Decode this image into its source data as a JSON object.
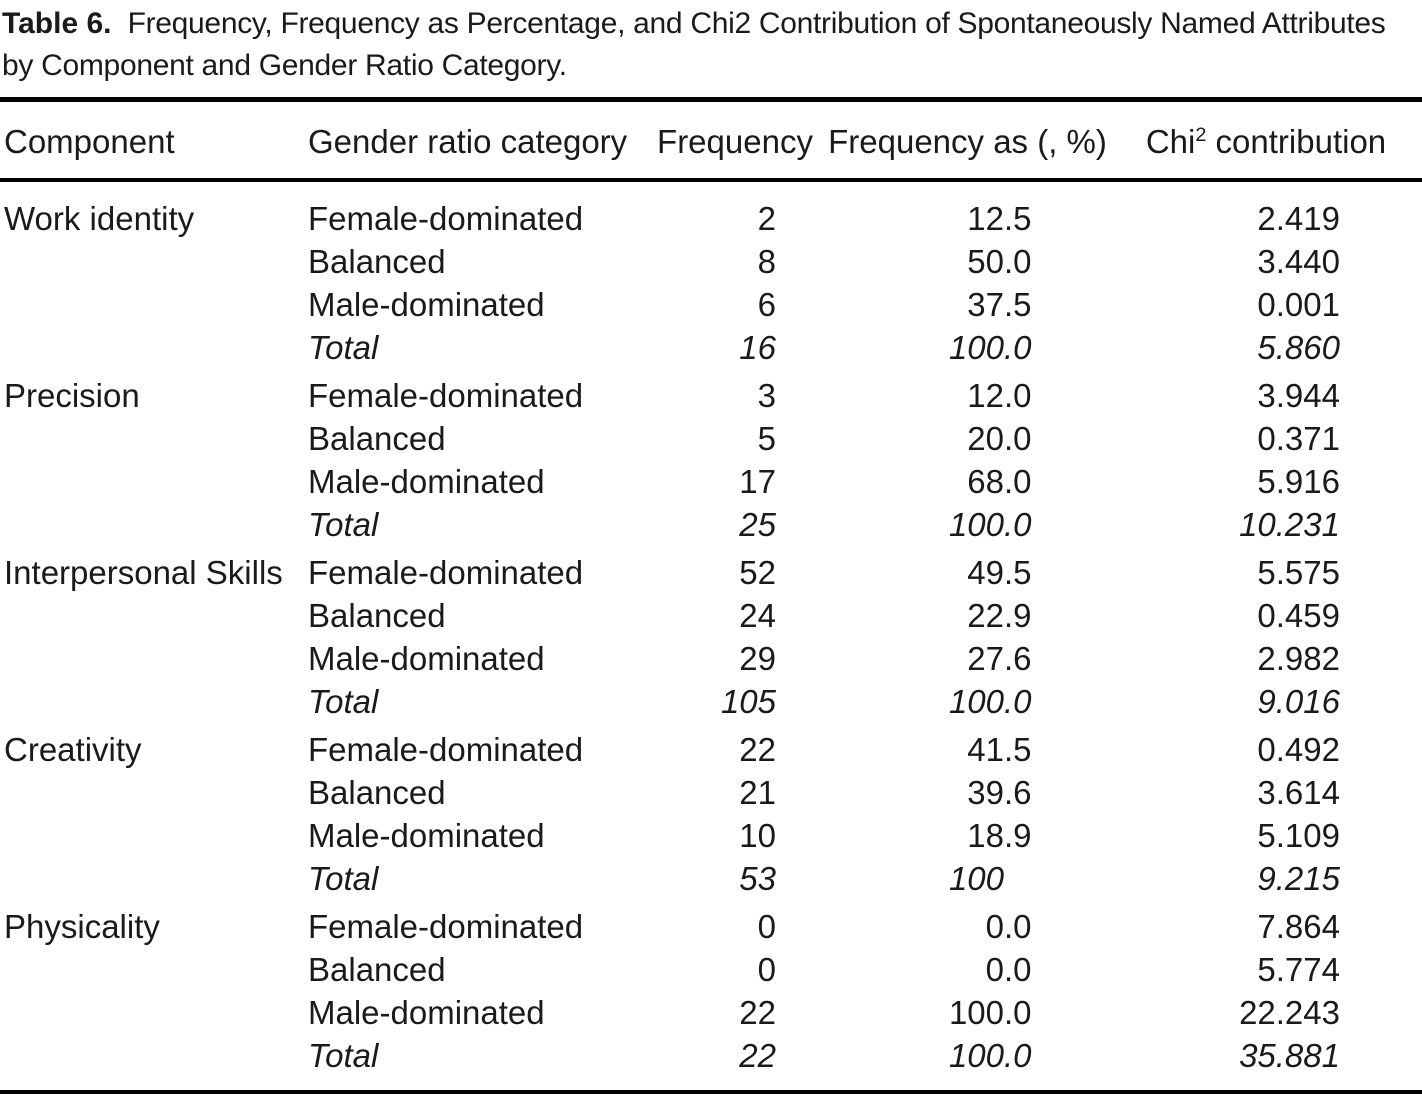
{
  "caption": {
    "label": "Table 6.",
    "text": "Frequency, Frequency as Percentage, and Chi2 Contribution of Spontaneously Named Attributes by Component and Gender Ratio Category."
  },
  "colors": {
    "text": "#1a1a1a",
    "rule": "#000000",
    "background": "#ffffff"
  },
  "table": {
    "headers": {
      "component": "Component",
      "gender_ratio_category": "Gender ratio category",
      "frequency": "Frequency",
      "frequency_pct": "Frequency as (, %)",
      "chi2": {
        "pre": "Chi",
        "sup": "2",
        "post": " contribution"
      }
    },
    "groups": [
      {
        "component": "Work identity",
        "rows": [
          {
            "category": "Female-dominated",
            "frequency": "2",
            "percent": "12.5",
            "chi2": "2.419"
          },
          {
            "category": "Balanced",
            "frequency": "8",
            "percent": "50.0",
            "chi2": "3.440"
          },
          {
            "category": "Male-dominated",
            "frequency": "6",
            "percent": "37.5",
            "chi2": "0.001"
          },
          {
            "category": "Total",
            "frequency": "16",
            "percent": "100.0",
            "chi2": "5.860",
            "total": true
          }
        ]
      },
      {
        "component": "Precision",
        "rows": [
          {
            "category": "Female-dominated",
            "frequency": "3",
            "percent": "12.0",
            "chi2": "3.944"
          },
          {
            "category": "Balanced",
            "frequency": "5",
            "percent": "20.0",
            "chi2": "0.371"
          },
          {
            "category": "Male-dominated",
            "frequency": "17",
            "percent": "68.0",
            "chi2": "5.916"
          },
          {
            "category": "Total",
            "frequency": "25",
            "percent": "100.0",
            "chi2": "10.231",
            "total": true
          }
        ]
      },
      {
        "component": "Interpersonal Skills",
        "rows": [
          {
            "category": "Female-dominated",
            "frequency": "52",
            "percent": "49.5",
            "chi2": "5.575"
          },
          {
            "category": "Balanced",
            "frequency": "24",
            "percent": "22.9",
            "chi2": "0.459"
          },
          {
            "category": "Male-dominated",
            "frequency": "29",
            "percent": "27.6",
            "chi2": "2.982"
          },
          {
            "category": "Total",
            "frequency": "105",
            "percent": "100.0",
            "chi2": "9.016",
            "total": true
          }
        ]
      },
      {
        "component": "Creativity",
        "rows": [
          {
            "category": "Female-dominated",
            "frequency": "22",
            "percent": "41.5",
            "chi2": "0.492"
          },
          {
            "category": "Balanced",
            "frequency": "21",
            "percent": "39.6",
            "chi2": "3.614"
          },
          {
            "category": "Male-dominated",
            "frequency": "10",
            "percent": "18.9",
            "chi2": "5.109"
          },
          {
            "category": "Total",
            "frequency": "53",
            "percent": "100",
            "chi2": "9.215",
            "total": true
          }
        ]
      },
      {
        "component": "Physicality",
        "rows": [
          {
            "category": "Female-dominated",
            "frequency": "0",
            "percent": "0.0",
            "chi2": "7.864"
          },
          {
            "category": "Balanced",
            "frequency": "0",
            "percent": "0.0",
            "chi2": "5.774"
          },
          {
            "category": "Male-dominated",
            "frequency": "22",
            "percent": "100.0",
            "chi2": "22.243"
          },
          {
            "category": "Total",
            "frequency": "22",
            "percent": "100.0",
            "chi2": "35.881",
            "total": true
          }
        ]
      }
    ]
  }
}
